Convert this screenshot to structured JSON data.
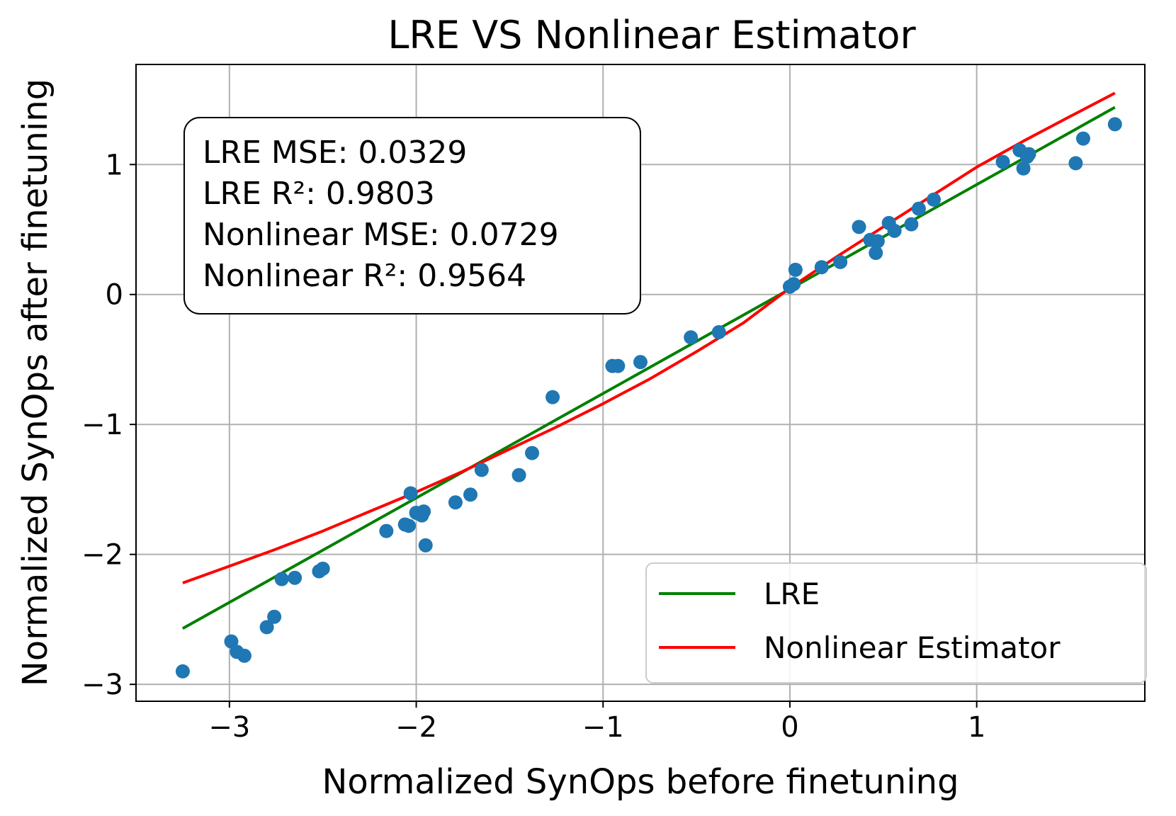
{
  "chart_data": {
    "type": "scatter",
    "title": "LRE VS Nonlinear Estimator",
    "xlabel": "Normalized SynOps before finetuning",
    "ylabel": "Normalized SynOps after finetuning",
    "xlim": [
      -3.5,
      1.9
    ],
    "ylim": [
      -3.13,
      1.77
    ],
    "xticks": [
      -3,
      -2,
      -1,
      0,
      1
    ],
    "xtick_labels": [
      "−3",
      "−2",
      "−1",
      "0",
      "1"
    ],
    "yticks": [
      -3,
      -2,
      -1,
      0,
      1
    ],
    "ytick_labels": [
      "−3",
      "−2",
      "−1",
      "0",
      "1"
    ],
    "grid": true,
    "colors": {
      "points": "#1f77b4",
      "lre": "#008000",
      "nonlinear": "#ff0000"
    },
    "stats_box": {
      "lines": [
        "LRE MSE: 0.0329",
        "LRE R²: 0.9803",
        "Nonlinear MSE: 0.0729",
        "Nonlinear R²: 0.9564"
      ],
      "placement": "upper-left"
    },
    "legend": {
      "placement": "lower-right",
      "entries": [
        {
          "label": "LRE",
          "color": "#008000"
        },
        {
          "label": "Nonlinear Estimator",
          "color": "#ff0000"
        }
      ]
    },
    "scatter_points": [
      {
        "x": -3.25,
        "y": -2.9
      },
      {
        "x": -2.99,
        "y": -2.67
      },
      {
        "x": -2.96,
        "y": -2.75
      },
      {
        "x": -2.92,
        "y": -2.78
      },
      {
        "x": -2.8,
        "y": -2.56
      },
      {
        "x": -2.76,
        "y": -2.48
      },
      {
        "x": -2.72,
        "y": -2.19
      },
      {
        "x": -2.65,
        "y": -2.18
      },
      {
        "x": -2.52,
        "y": -2.13
      },
      {
        "x": -2.5,
        "y": -2.11
      },
      {
        "x": -2.16,
        "y": -1.82
      },
      {
        "x": -2.06,
        "y": -1.77
      },
      {
        "x": -2.04,
        "y": -1.78
      },
      {
        "x": -2.03,
        "y": -1.53
      },
      {
        "x": -2.0,
        "y": -1.68
      },
      {
        "x": -1.97,
        "y": -1.7
      },
      {
        "x": -1.96,
        "y": -1.67
      },
      {
        "x": -1.95,
        "y": -1.93
      },
      {
        "x": -1.79,
        "y": -1.6
      },
      {
        "x": -1.71,
        "y": -1.54
      },
      {
        "x": -1.65,
        "y": -1.35
      },
      {
        "x": -1.45,
        "y": -1.39
      },
      {
        "x": -1.38,
        "y": -1.22
      },
      {
        "x": -1.27,
        "y": -0.79
      },
      {
        "x": -0.95,
        "y": -0.55
      },
      {
        "x": -0.92,
        "y": -0.55
      },
      {
        "x": -0.8,
        "y": -0.52
      },
      {
        "x": -0.53,
        "y": -0.33
      },
      {
        "x": -0.38,
        "y": -0.29
      },
      {
        "x": 0.0,
        "y": 0.06
      },
      {
        "x": 0.02,
        "y": 0.08
      },
      {
        "x": 0.03,
        "y": 0.19
      },
      {
        "x": 0.17,
        "y": 0.21
      },
      {
        "x": 0.27,
        "y": 0.25
      },
      {
        "x": 0.37,
        "y": 0.52
      },
      {
        "x": 0.43,
        "y": 0.42
      },
      {
        "x": 0.46,
        "y": 0.32
      },
      {
        "x": 0.47,
        "y": 0.41
      },
      {
        "x": 0.53,
        "y": 0.55
      },
      {
        "x": 0.56,
        "y": 0.49
      },
      {
        "x": 0.65,
        "y": 0.54
      },
      {
        "x": 0.69,
        "y": 0.66
      },
      {
        "x": 0.77,
        "y": 0.73
      },
      {
        "x": 1.14,
        "y": 1.02
      },
      {
        "x": 1.23,
        "y": 1.11
      },
      {
        "x": 1.25,
        "y": 0.97
      },
      {
        "x": 1.27,
        "y": 1.06
      },
      {
        "x": 1.28,
        "y": 1.08
      },
      {
        "x": 1.53,
        "y": 1.01
      },
      {
        "x": 1.57,
        "y": 1.2
      },
      {
        "x": 1.74,
        "y": 1.31
      }
    ],
    "series": [
      {
        "name": "LRE",
        "color": "#008000",
        "x": [
          -3.25,
          1.74
        ],
        "y": [
          -2.57,
          1.44
        ]
      },
      {
        "name": "Nonlinear Estimator",
        "color": "#ff0000",
        "x": [
          -3.25,
          -3.0,
          -2.75,
          -2.5,
          -2.25,
          -2.0,
          -1.75,
          -1.5,
          -1.25,
          -1.0,
          -0.75,
          -0.5,
          -0.25,
          0.0,
          0.25,
          0.5,
          0.75,
          1.0,
          1.25,
          1.5,
          1.74
        ],
        "y": [
          -2.22,
          -2.09,
          -1.96,
          -1.82,
          -1.67,
          -1.52,
          -1.36,
          -1.19,
          -1.02,
          -0.84,
          -0.65,
          -0.44,
          -0.22,
          0.05,
          0.29,
          0.52,
          0.75,
          0.98,
          1.18,
          1.37,
          1.55
        ]
      }
    ]
  }
}
